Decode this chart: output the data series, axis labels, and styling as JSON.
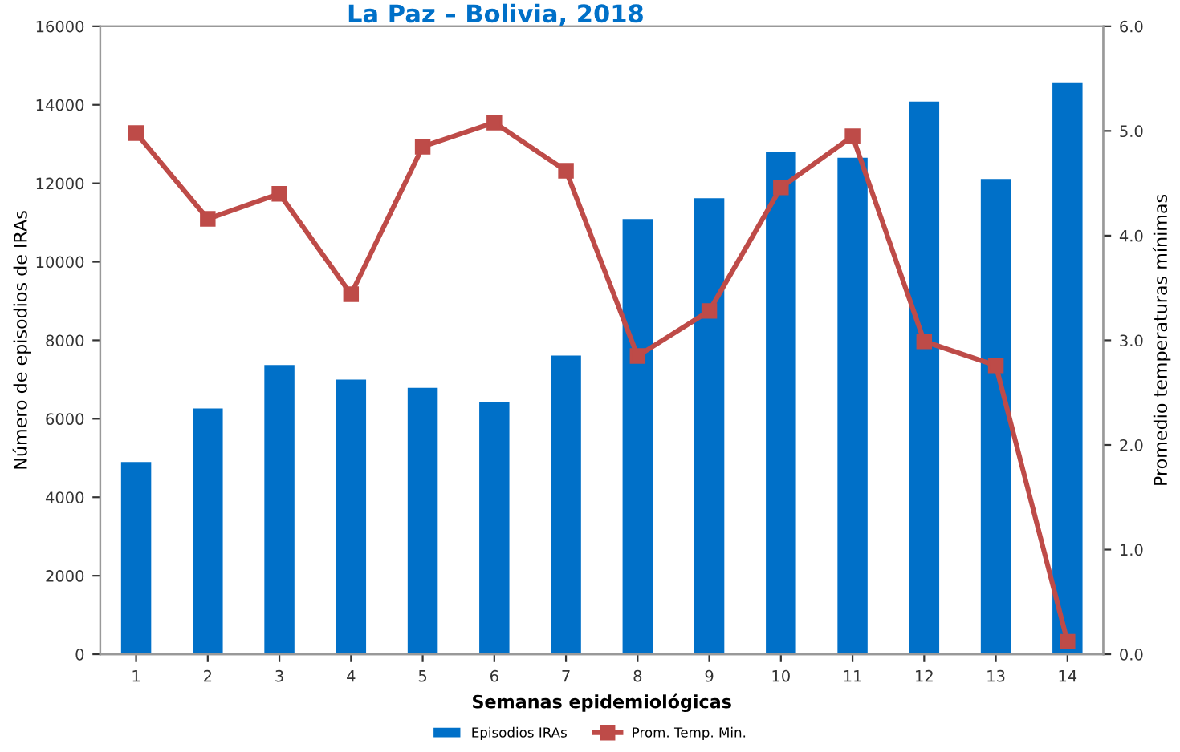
{
  "chart_data": {
    "type": "bar",
    "title": "La Paz – Bolivia, 2018",
    "xlabel": "Semanas epidemiológicas",
    "ylabel": "Número de episodios de IRAs",
    "y2label": "Promedio temperaturas mínimas",
    "categories": [
      "1",
      "2",
      "3",
      "4",
      "5",
      "6",
      "7",
      "8",
      "9",
      "10",
      "11",
      "12",
      "13",
      "14"
    ],
    "series": [
      {
        "name": "Episodios IRAs",
        "color": "#0070c8",
        "values": [
          4900,
          6260,
          7370,
          7000,
          6790,
          6420,
          7610,
          11090,
          11620,
          12810,
          12650,
          14080,
          12110,
          14570
        ]
      },
      {
        "name": "Prom. Temp. Min.",
        "type": "line",
        "axis": "y2",
        "color": "#be4b48",
        "marker": "square",
        "values": [
          4.98,
          4.16,
          4.4,
          3.44,
          4.85,
          5.08,
          4.62,
          2.85,
          3.28,
          4.46,
          4.95,
          2.99,
          2.76,
          0.12
        ]
      }
    ],
    "ylim": [
      0,
      16000
    ],
    "yticks": [
      0,
      2000,
      4000,
      6000,
      8000,
      10000,
      12000,
      14000,
      16000
    ],
    "y2lim": [
      0,
      6
    ],
    "y2ticks": [
      {
        "value": 0,
        "label": "0.0"
      },
      {
        "value": 1,
        "label": "1.0"
      },
      {
        "value": 2,
        "label": "2.0"
      },
      {
        "value": 3,
        "label": "3.0"
      },
      {
        "value": 4,
        "label": "4.0"
      },
      {
        "value": 5,
        "label": "5.0"
      },
      {
        "value": 6,
        "label": "6.0"
      }
    ],
    "grid": false,
    "legend": "bottom"
  }
}
